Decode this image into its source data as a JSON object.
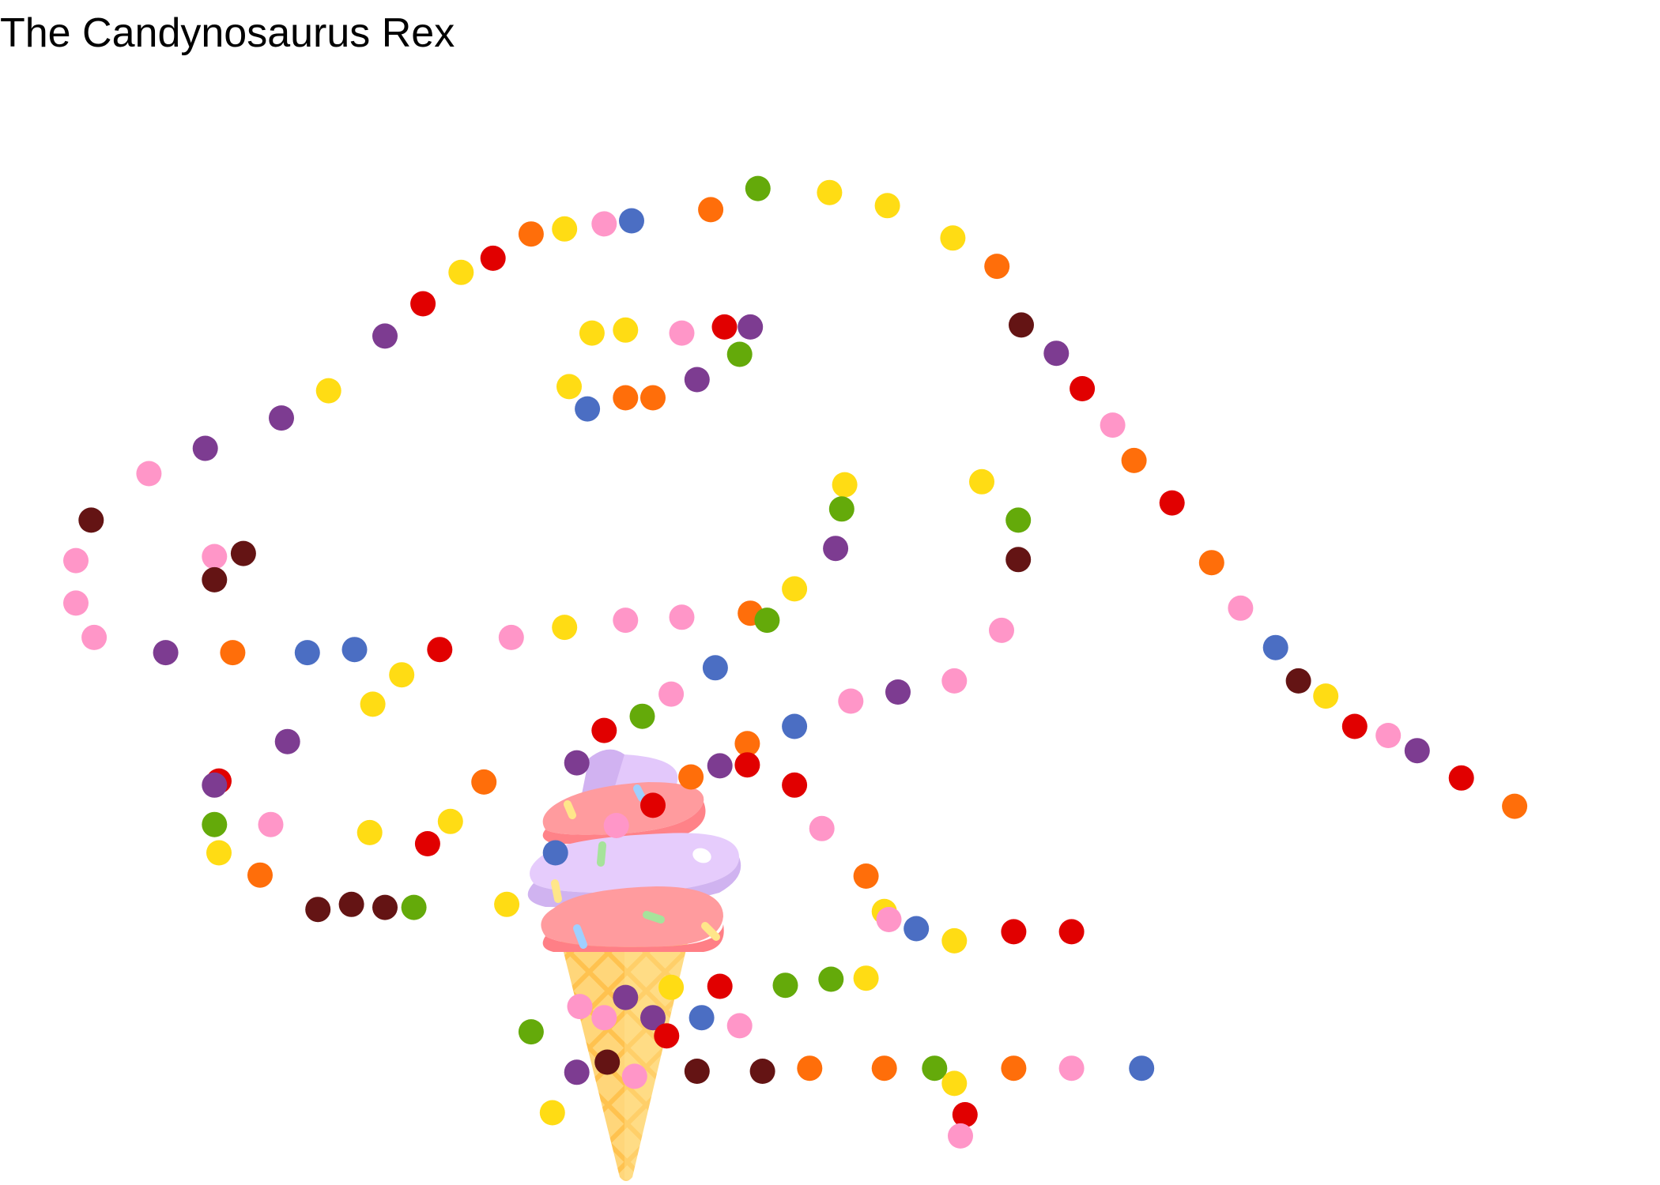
{
  "chart_data": {
    "type": "scatter",
    "title": "The Candynosaurus Rex",
    "xlabel": "",
    "ylabel": "",
    "xlim": [
      0,
      100
    ],
    "ylim": [
      0,
      100
    ],
    "grid": false,
    "legend": "none",
    "palette": {
      "pink": "#FF96C8",
      "yellow": "#FFDC14",
      "red": "#E10000",
      "orange": "#FF6E0A",
      "purple": "#7D3C91",
      "blue": "#4B6EC3",
      "green": "#64AA0A",
      "brown": "#641414"
    },
    "decoration": "ice-cream-cone",
    "points": [
      {
        "x": 0.0,
        "y": 55.5,
        "c": "pink"
      },
      {
        "x": 0.0,
        "y": 51.3,
        "c": "pink"
      },
      {
        "x": 1.2,
        "y": 47.9,
        "c": "pink"
      },
      {
        "x": 1.0,
        "y": 59.5,
        "c": "brown"
      },
      {
        "x": 4.8,
        "y": 64.1,
        "c": "pink"
      },
      {
        "x": 8.5,
        "y": 66.6,
        "c": "purple"
      },
      {
        "x": 13.5,
        "y": 69.6,
        "c": "purple"
      },
      {
        "x": 16.6,
        "y": 72.3,
        "c": "yellow"
      },
      {
        "x": 20.3,
        "y": 77.7,
        "c": "purple"
      },
      {
        "x": 22.8,
        "y": 80.9,
        "c": "red"
      },
      {
        "x": 25.3,
        "y": 84.0,
        "c": "yellow"
      },
      {
        "x": 27.4,
        "y": 85.4,
        "c": "red"
      },
      {
        "x": 29.9,
        "y": 87.8,
        "c": "orange"
      },
      {
        "x": 32.1,
        "y": 88.3,
        "c": "yellow"
      },
      {
        "x": 34.7,
        "y": 88.8,
        "c": "pink"
      },
      {
        "x": 36.5,
        "y": 89.1,
        "c": "blue"
      },
      {
        "x": 41.7,
        "y": 90.2,
        "c": "orange"
      },
      {
        "x": 44.8,
        "y": 92.3,
        "c": "green"
      },
      {
        "x": 49.5,
        "y": 91.9,
        "c": "yellow"
      },
      {
        "x": 53.3,
        "y": 90.6,
        "c": "yellow"
      },
      {
        "x": 57.6,
        "y": 87.4,
        "c": "yellow"
      },
      {
        "x": 60.5,
        "y": 84.6,
        "c": "orange"
      },
      {
        "x": 62.1,
        "y": 78.8,
        "c": "brown"
      },
      {
        "x": 64.4,
        "y": 76.0,
        "c": "purple"
      },
      {
        "x": 66.1,
        "y": 72.5,
        "c": "red"
      },
      {
        "x": 68.1,
        "y": 68.9,
        "c": "pink"
      },
      {
        "x": 69.5,
        "y": 65.4,
        "c": "orange"
      },
      {
        "x": 72.0,
        "y": 61.2,
        "c": "red"
      },
      {
        "x": 74.6,
        "y": 55.3,
        "c": "orange"
      },
      {
        "x": 76.5,
        "y": 50.8,
        "c": "pink"
      },
      {
        "x": 78.8,
        "y": 46.9,
        "c": "blue"
      },
      {
        "x": 80.3,
        "y": 43.6,
        "c": "brown"
      },
      {
        "x": 82.1,
        "y": 42.1,
        "c": "yellow"
      },
      {
        "x": 84.0,
        "y": 39.1,
        "c": "red"
      },
      {
        "x": 86.2,
        "y": 38.2,
        "c": "pink"
      },
      {
        "x": 88.1,
        "y": 36.7,
        "c": "purple"
      },
      {
        "x": 91.0,
        "y": 34.0,
        "c": "red"
      },
      {
        "x": 94.5,
        "y": 31.2,
        "c": "orange"
      },
      {
        "x": 9.1,
        "y": 55.9,
        "c": "pink"
      },
      {
        "x": 11.0,
        "y": 56.2,
        "c": "brown"
      },
      {
        "x": 9.1,
        "y": 53.6,
        "c": "brown"
      },
      {
        "x": 33.9,
        "y": 78.0,
        "c": "yellow"
      },
      {
        "x": 36.1,
        "y": 78.3,
        "c": "yellow"
      },
      {
        "x": 39.8,
        "y": 78.0,
        "c": "pink"
      },
      {
        "x": 42.6,
        "y": 78.6,
        "c": "red"
      },
      {
        "x": 44.3,
        "y": 78.6,
        "c": "purple"
      },
      {
        "x": 43.6,
        "y": 75.9,
        "c": "green"
      },
      {
        "x": 40.8,
        "y": 73.4,
        "c": "purple"
      },
      {
        "x": 37.9,
        "y": 71.6,
        "c": "orange"
      },
      {
        "x": 36.1,
        "y": 71.6,
        "c": "orange"
      },
      {
        "x": 32.4,
        "y": 72.7,
        "c": "yellow"
      },
      {
        "x": 33.6,
        "y": 70.5,
        "c": "blue"
      },
      {
        "x": 50.5,
        "y": 63.0,
        "c": "yellow"
      },
      {
        "x": 50.3,
        "y": 60.6,
        "c": "green"
      },
      {
        "x": 49.9,
        "y": 56.7,
        "c": "purple"
      },
      {
        "x": 47.2,
        "y": 52.7,
        "c": "yellow"
      },
      {
        "x": 44.3,
        "y": 50.3,
        "c": "orange"
      },
      {
        "x": 45.4,
        "y": 49.6,
        "c": "green"
      },
      {
        "x": 39.8,
        "y": 49.9,
        "c": "pink"
      },
      {
        "x": 36.1,
        "y": 49.6,
        "c": "pink"
      },
      {
        "x": 32.1,
        "y": 48.9,
        "c": "yellow"
      },
      {
        "x": 28.6,
        "y": 47.9,
        "c": "pink"
      },
      {
        "x": 23.9,
        "y": 46.7,
        "c": "red"
      },
      {
        "x": 18.3,
        "y": 46.7,
        "c": "blue"
      },
      {
        "x": 15.2,
        "y": 46.4,
        "c": "blue"
      },
      {
        "x": 10.3,
        "y": 46.4,
        "c": "orange"
      },
      {
        "x": 5.9,
        "y": 46.4,
        "c": "purple"
      },
      {
        "x": 21.4,
        "y": 44.2,
        "c": "yellow"
      },
      {
        "x": 19.5,
        "y": 41.3,
        "c": "yellow"
      },
      {
        "x": 13.9,
        "y": 37.6,
        "c": "purple"
      },
      {
        "x": 9.4,
        "y": 33.7,
        "c": "red"
      },
      {
        "x": 9.1,
        "y": 33.3,
        "c": "purple"
      },
      {
        "x": 9.1,
        "y": 29.4,
        "c": "green"
      },
      {
        "x": 9.4,
        "y": 26.6,
        "c": "yellow"
      },
      {
        "x": 12.1,
        "y": 24.4,
        "c": "orange"
      },
      {
        "x": 12.8,
        "y": 29.4,
        "c": "pink"
      },
      {
        "x": 15.9,
        "y": 21.0,
        "c": "brown"
      },
      {
        "x": 18.1,
        "y": 21.5,
        "c": "brown"
      },
      {
        "x": 20.3,
        "y": 21.2,
        "c": "brown"
      },
      {
        "x": 23.1,
        "y": 27.5,
        "c": "red"
      },
      {
        "x": 22.2,
        "y": 21.2,
        "c": "green"
      },
      {
        "x": 19.3,
        "y": 28.6,
        "c": "yellow"
      },
      {
        "x": 24.6,
        "y": 29.7,
        "c": "yellow"
      },
      {
        "x": 26.8,
        "y": 33.6,
        "c": "orange"
      },
      {
        "x": 28.3,
        "y": 21.5,
        "c": "yellow"
      },
      {
        "x": 31.5,
        "y": 26.6,
        "c": "blue"
      },
      {
        "x": 32.9,
        "y": 35.5,
        "c": "purple"
      },
      {
        "x": 34.7,
        "y": 38.7,
        "c": "red"
      },
      {
        "x": 37.2,
        "y": 40.1,
        "c": "green"
      },
      {
        "x": 39.1,
        "y": 42.3,
        "c": "pink"
      },
      {
        "x": 42.0,
        "y": 44.9,
        "c": "blue"
      },
      {
        "x": 44.1,
        "y": 37.4,
        "c": "orange"
      },
      {
        "x": 42.3,
        "y": 35.2,
        "c": "purple"
      },
      {
        "x": 40.4,
        "y": 34.1,
        "c": "orange"
      },
      {
        "x": 44.1,
        "y": 35.3,
        "c": "red"
      },
      {
        "x": 47.2,
        "y": 33.3,
        "c": "red"
      },
      {
        "x": 37.9,
        "y": 31.3,
        "c": "red"
      },
      {
        "x": 35.5,
        "y": 29.3,
        "c": "pink"
      },
      {
        "x": 47.2,
        "y": 39.1,
        "c": "blue"
      },
      {
        "x": 50.9,
        "y": 41.6,
        "c": "pink"
      },
      {
        "x": 54.0,
        "y": 42.5,
        "c": "purple"
      },
      {
        "x": 57.7,
        "y": 43.6,
        "c": "pink"
      },
      {
        "x": 60.8,
        "y": 48.6,
        "c": "pink"
      },
      {
        "x": 59.5,
        "y": 63.3,
        "c": "yellow"
      },
      {
        "x": 61.9,
        "y": 59.5,
        "c": "green"
      },
      {
        "x": 61.9,
        "y": 55.6,
        "c": "brown"
      },
      {
        "x": 49.0,
        "y": 29.0,
        "c": "pink"
      },
      {
        "x": 51.9,
        "y": 24.3,
        "c": "orange"
      },
      {
        "x": 53.1,
        "y": 20.8,
        "c": "yellow"
      },
      {
        "x": 53.4,
        "y": 20.0,
        "c": "pink"
      },
      {
        "x": 55.2,
        "y": 19.1,
        "c": "blue"
      },
      {
        "x": 57.7,
        "y": 17.9,
        "c": "yellow"
      },
      {
        "x": 61.6,
        "y": 18.8,
        "c": "red"
      },
      {
        "x": 65.4,
        "y": 18.8,
        "c": "red"
      },
      {
        "x": 49.6,
        "y": 14.1,
        "c": "green"
      },
      {
        "x": 51.9,
        "y": 14.2,
        "c": "yellow"
      },
      {
        "x": 46.6,
        "y": 13.5,
        "c": "green"
      },
      {
        "x": 42.3,
        "y": 13.4,
        "c": "red"
      },
      {
        "x": 39.1,
        "y": 13.3,
        "c": "yellow"
      },
      {
        "x": 36.1,
        "y": 12.3,
        "c": "purple"
      },
      {
        "x": 33.1,
        "y": 11.4,
        "c": "pink"
      },
      {
        "x": 34.7,
        "y": 10.3,
        "c": "pink"
      },
      {
        "x": 37.9,
        "y": 10.3,
        "c": "purple"
      },
      {
        "x": 41.1,
        "y": 10.3,
        "c": "blue"
      },
      {
        "x": 43.6,
        "y": 9.5,
        "c": "pink"
      },
      {
        "x": 38.8,
        "y": 8.5,
        "c": "red"
      },
      {
        "x": 29.9,
        "y": 8.9,
        "c": "green"
      },
      {
        "x": 34.9,
        "y": 5.9,
        "c": "brown"
      },
      {
        "x": 32.9,
        "y": 4.9,
        "c": "purple"
      },
      {
        "x": 40.8,
        "y": 5.0,
        "c": "brown"
      },
      {
        "x": 45.1,
        "y": 5.0,
        "c": "brown"
      },
      {
        "x": 36.7,
        "y": 4.5,
        "c": "pink"
      },
      {
        "x": 48.2,
        "y": 5.3,
        "c": "orange"
      },
      {
        "x": 53.1,
        "y": 5.3,
        "c": "orange"
      },
      {
        "x": 56.4,
        "y": 5.3,
        "c": "green"
      },
      {
        "x": 57.7,
        "y": 3.8,
        "c": "yellow"
      },
      {
        "x": 61.6,
        "y": 5.3,
        "c": "orange"
      },
      {
        "x": 65.4,
        "y": 5.3,
        "c": "pink"
      },
      {
        "x": 70.0,
        "y": 5.3,
        "c": "blue"
      },
      {
        "x": 58.4,
        "y": 0.7,
        "c": "red"
      },
      {
        "x": 58.1,
        "y": -1.4,
        "c": "pink"
      },
      {
        "x": 31.3,
        "y": 0.9,
        "c": "yellow"
      }
    ]
  }
}
